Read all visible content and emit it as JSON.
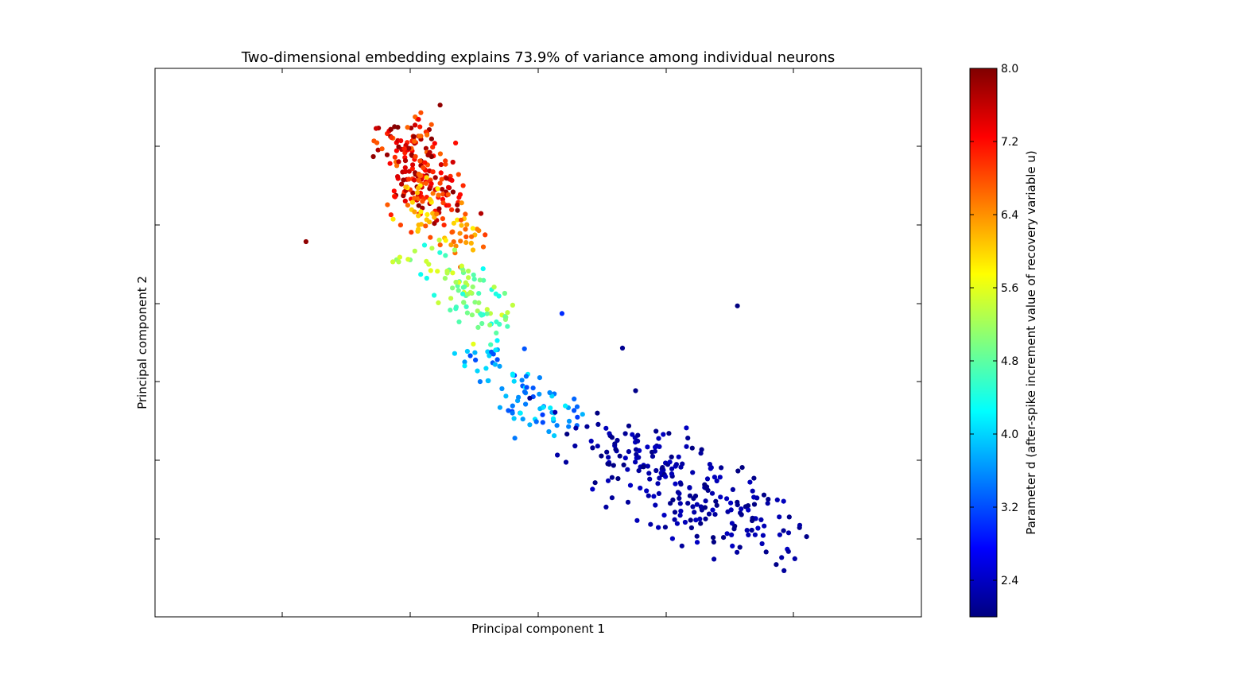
{
  "chart_data": {
    "type": "scatter",
    "title": "Two-dimensional embedding explains 73.9% of variance among individual neurons",
    "xlabel": "Principal component 1",
    "ylabel": "Principal component 2",
    "x_tick_labels_shown": false,
    "y_tick_labels_shown": false,
    "grid": false,
    "legend": "none",
    "xlim": [
      0,
      100
    ],
    "ylim": [
      0,
      100
    ],
    "colormap": "jet",
    "colorbar": {
      "label": "Parameter d (after-spike increment value of recovery variable u)",
      "range": [
        2.0,
        8.0
      ],
      "ticks": [
        2.4,
        3.2,
        4.0,
        4.8,
        5.6,
        6.4,
        7.2,
        8.0
      ],
      "tick_labels": [
        "2.4",
        "3.2",
        "4.0",
        "4.8",
        "5.6",
        "6.4",
        "7.2",
        "8.0"
      ]
    },
    "outliers": [
      {
        "x": 19.7,
        "y": 68.4,
        "d": 7.9
      },
      {
        "x": 37.2,
        "y": 93.3,
        "d": 7.9
      },
      {
        "x": 53.1,
        "y": 55.3,
        "d": 3.0
      },
      {
        "x": 61.0,
        "y": 49.0,
        "d": 2.1
      },
      {
        "x": 76.0,
        "y": 56.7,
        "d": 2.0
      }
    ],
    "clusters": [
      {
        "n": 200,
        "cx": [
          32.5,
          36.5
        ],
        "cy": [
          75,
          89
        ],
        "sx": 2.2,
        "sy": 2.3,
        "d": [
          6.6,
          8.0
        ]
      },
      {
        "n": 70,
        "cx": [
          33.5,
          40.0
        ],
        "cy": [
          67,
          78
        ],
        "sx": 2.2,
        "sy": 2.0,
        "d": [
          5.8,
          6.9
        ]
      },
      {
        "n": 95,
        "cx": [
          35.0,
          45.0
        ],
        "cy": [
          53,
          66
        ],
        "sx": 2.2,
        "sy": 2.0,
        "d": [
          4.3,
          5.6
        ]
      },
      {
        "n": 85,
        "cx": [
          42.5,
          52.5
        ],
        "cy": [
          35,
          48
        ],
        "sx": 2.4,
        "sy": 2.0,
        "d": [
          3.1,
          4.2
        ]
      },
      {
        "n": 240,
        "cx": [
          58.0,
          80.0
        ],
        "cy": [
          14,
          33
        ],
        "sx": 4.2,
        "sy": 3.4,
        "d": [
          2.0,
          2.4
        ]
      }
    ]
  }
}
